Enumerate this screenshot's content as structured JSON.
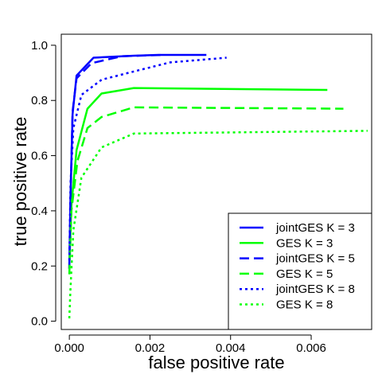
{
  "chart_data": {
    "type": "line",
    "title": "",
    "xlabel": "false positive rate",
    "ylabel": "true positive rate",
    "xlim": [
      -0.0002,
      0.0075
    ],
    "ylim": [
      -0.03,
      1.04
    ],
    "x_ticks": [
      0.0,
      0.002,
      0.004,
      0.006
    ],
    "x_tick_labels": [
      "0.000",
      "0.002",
      "0.004",
      "0.006"
    ],
    "y_ticks": [
      0.0,
      0.2,
      0.4,
      0.6,
      0.8,
      1.0
    ],
    "y_tick_labels": [
      "0.0",
      "0.2",
      "0.4",
      "0.6",
      "0.8",
      "1.0"
    ],
    "grid": false,
    "legend_position": "bottom-right",
    "series": [
      {
        "name": "jointGES K = 3",
        "color": "#0000ff",
        "dash": "solid",
        "x": [
          0.0,
          3e-05,
          8e-05,
          0.00018,
          0.0006,
          0.0016,
          0.0022,
          0.0034
        ],
        "y": [
          0.19,
          0.45,
          0.75,
          0.89,
          0.955,
          0.962,
          0.965,
          0.965
        ]
      },
      {
        "name": "GES K = 3",
        "color": "#00ff00",
        "dash": "solid",
        "x": [
          0.0,
          5e-05,
          0.00018,
          0.00045,
          0.0008,
          0.0016,
          0.0064
        ],
        "y": [
          0.2,
          0.42,
          0.62,
          0.77,
          0.825,
          0.845,
          0.838
        ]
      },
      {
        "name": "jointGES K = 5",
        "color": "#0000ff",
        "dash": "dashed",
        "x": [
          0.0,
          3e-05,
          8e-05,
          0.00018,
          0.00055,
          0.0013,
          0.0023
        ],
        "y": [
          0.19,
          0.45,
          0.76,
          0.88,
          0.935,
          0.96,
          0.965
        ]
      },
      {
        "name": "GES K = 5",
        "color": "#00ff00",
        "dash": "dashed",
        "x": [
          0.0,
          5e-05,
          0.0002,
          0.00045,
          0.0008,
          0.0016,
          0.0068
        ],
        "y": [
          0.17,
          0.4,
          0.58,
          0.7,
          0.74,
          0.775,
          0.77
        ]
      },
      {
        "name": "jointGES K = 8",
        "color": "#0000ff",
        "dash": "dotted",
        "x": [
          0.0,
          3e-05,
          0.0001,
          0.0003,
          0.0008,
          0.0016,
          0.0025,
          0.0039
        ],
        "y": [
          0.22,
          0.5,
          0.7,
          0.82,
          0.875,
          0.905,
          0.938,
          0.955
        ]
      },
      {
        "name": "GES K = 8",
        "color": "#00ff00",
        "dash": "dotted",
        "x": [
          0.0,
          3e-05,
          0.0001,
          0.0003,
          0.0008,
          0.0016,
          0.0074
        ],
        "y": [
          0.01,
          0.12,
          0.33,
          0.52,
          0.63,
          0.68,
          0.69
        ]
      }
    ]
  }
}
